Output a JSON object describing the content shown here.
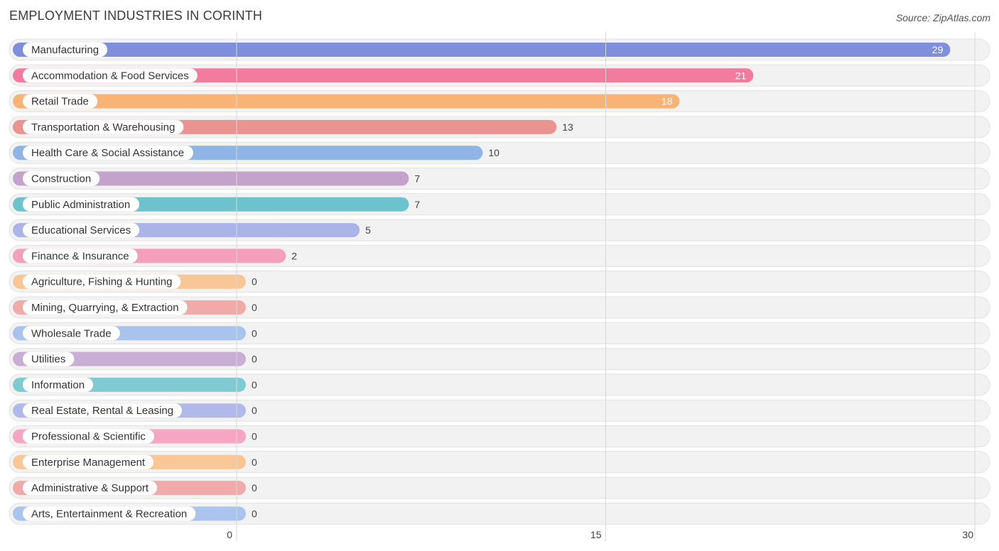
{
  "header": {
    "title": "EMPLOYMENT INDUSTRIES IN CORINTH",
    "source": "Source: ZipAtlas.com"
  },
  "chart_data": {
    "type": "bar",
    "orientation": "horizontal",
    "title": "EMPLOYMENT INDUSTRIES IN CORINTH",
    "xlim": [
      0,
      30
    ],
    "ticks": [
      0,
      15,
      30
    ],
    "grid": true,
    "categories": [
      "Manufacturing",
      "Accommodation & Food Services",
      "Retail Trade",
      "Transportation & Warehousing",
      "Health Care & Social Assistance",
      "Construction",
      "Public Administration",
      "Educational Services",
      "Finance & Insurance",
      "Agriculture, Fishing & Hunting",
      "Mining, Quarrying, & Extraction",
      "Wholesale Trade",
      "Utilities",
      "Information",
      "Real Estate, Rental & Leasing",
      "Professional & Scientific",
      "Enterprise Management",
      "Administrative & Support",
      "Arts, Entertainment & Recreation"
    ],
    "values": [
      29,
      21,
      18,
      13,
      10,
      7,
      7,
      5,
      2,
      0,
      0,
      0,
      0,
      0,
      0,
      0,
      0,
      0,
      0
    ],
    "colors": [
      "#7f8fdc",
      "#f47ba0",
      "#f9b374",
      "#e99490",
      "#8fb5e6",
      "#c3a3cc",
      "#6cc3ce",
      "#aab4e8",
      "#f59fbc",
      "#f9c795",
      "#f0aaa8",
      "#a8c4ec",
      "#c8aed4",
      "#7fcbd2",
      "#b0b9ea",
      "#f6a6c2",
      "#f9c694",
      "#f0aaaa",
      "#a9c5ee"
    ]
  }
}
